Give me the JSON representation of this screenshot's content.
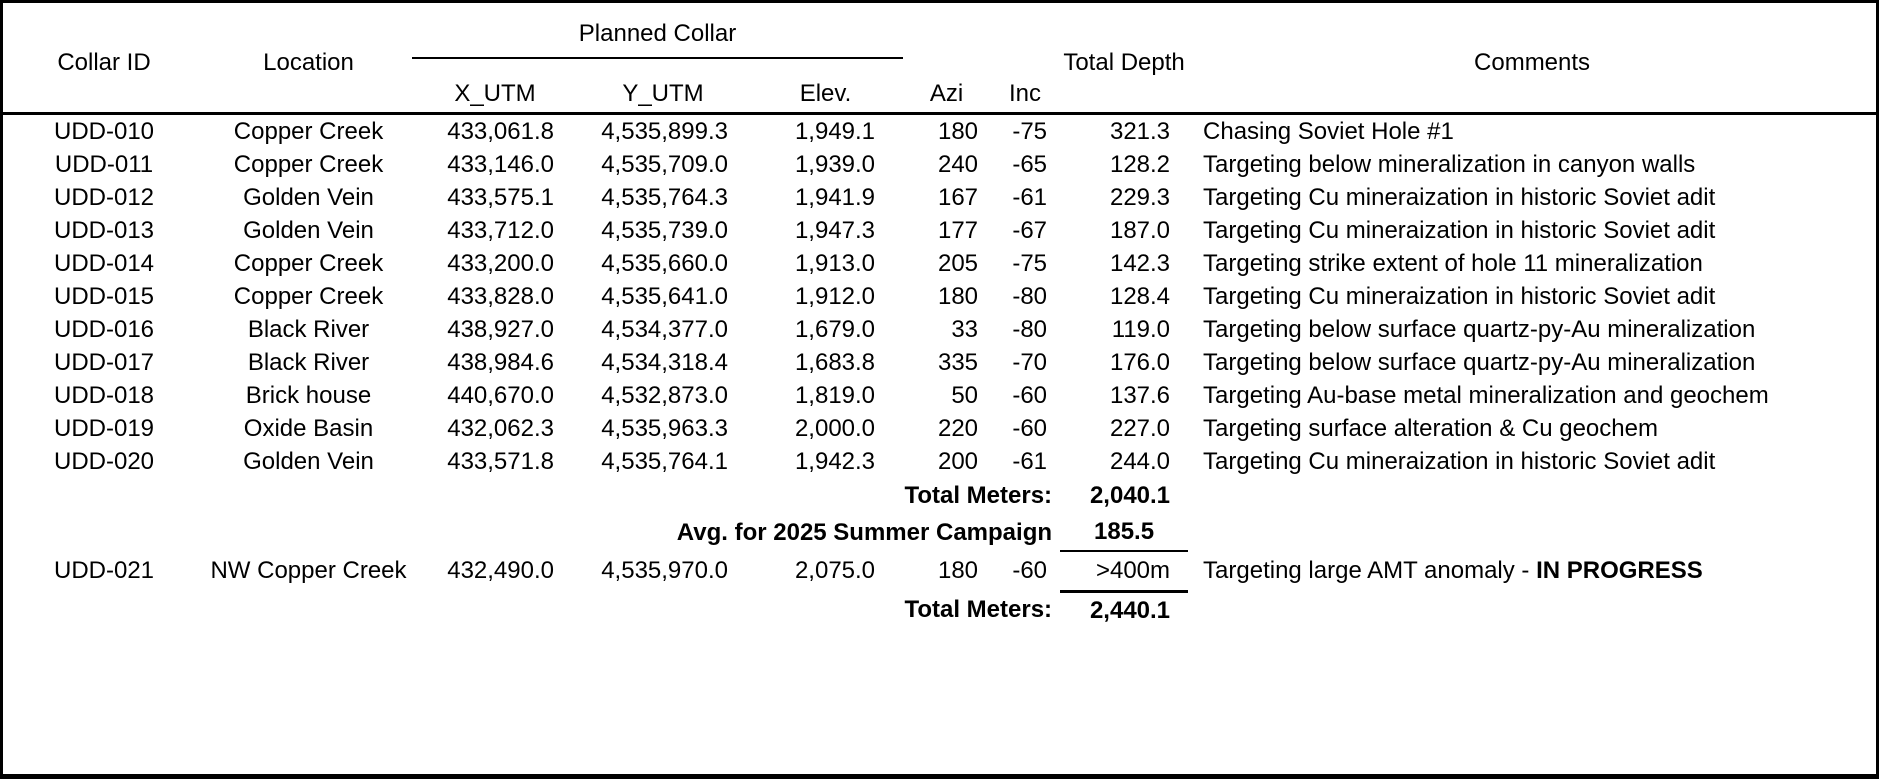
{
  "table": {
    "headers": {
      "collar_id": "Collar ID",
      "location": "Location",
      "planned_collar": "Planned Collar",
      "x_utm": "X_UTM",
      "y_utm": "Y_UTM",
      "elev": "Elev.",
      "azi": "Azi",
      "inc": "Inc",
      "total_depth": "Total Depth",
      "comments": "Comments"
    },
    "rows": [
      {
        "collar_id": "UDD-010",
        "location": "Copper Creek",
        "x_utm": "433,061.8",
        "y_utm": "4,535,899.3",
        "elev": "1,949.1",
        "azi": "180",
        "inc": "-75",
        "total_depth": "321.3",
        "comments": "Chasing Soviet Hole #1"
      },
      {
        "collar_id": "UDD-011",
        "location": "Copper Creek",
        "x_utm": "433,146.0",
        "y_utm": "4,535,709.0",
        "elev": "1,939.0",
        "azi": "240",
        "inc": "-65",
        "total_depth": "128.2",
        "comments": "Targeting below mineralization in canyon walls"
      },
      {
        "collar_id": "UDD-012",
        "location": "Golden Vein",
        "x_utm": "433,575.1",
        "y_utm": "4,535,764.3",
        "elev": "1,941.9",
        "azi": "167",
        "inc": "-61",
        "total_depth": "229.3",
        "comments": "Targeting Cu mineraization in historic Soviet adit"
      },
      {
        "collar_id": "UDD-013",
        "location": "Golden Vein",
        "x_utm": "433,712.0",
        "y_utm": "4,535,739.0",
        "elev": "1,947.3",
        "azi": "177",
        "inc": "-67",
        "total_depth": "187.0",
        "comments": "Targeting Cu mineraization in historic Soviet adit"
      },
      {
        "collar_id": "UDD-014",
        "location": "Copper Creek",
        "x_utm": "433,200.0",
        "y_utm": "4,535,660.0",
        "elev": "1,913.0",
        "azi": "205",
        "inc": "-75",
        "total_depth": "142.3",
        "comments": "Targeting strike extent of hole 11 mineralization"
      },
      {
        "collar_id": "UDD-015",
        "location": "Copper Creek",
        "x_utm": "433,828.0",
        "y_utm": "4,535,641.0",
        "elev": "1,912.0",
        "azi": "180",
        "inc": "-80",
        "total_depth": "128.4",
        "comments": "Targeting Cu mineraization in historic Soviet adit"
      },
      {
        "collar_id": "UDD-016",
        "location": "Black River",
        "x_utm": "438,927.0",
        "y_utm": "4,534,377.0",
        "elev": "1,679.0",
        "azi": "33",
        "inc": "-80",
        "total_depth": "119.0",
        "comments": "Targeting below surface quartz-py-Au mineralization"
      },
      {
        "collar_id": "UDD-017",
        "location": "Black River",
        "x_utm": "438,984.6",
        "y_utm": "4,534,318.4",
        "elev": "1,683.8",
        "azi": "335",
        "inc": "-70",
        "total_depth": "176.0",
        "comments": "Targeting below surface quartz-py-Au mineralization"
      },
      {
        "collar_id": "UDD-018",
        "location": "Brick house",
        "x_utm": "440,670.0",
        "y_utm": "4,532,873.0",
        "elev": "1,819.0",
        "azi": "50",
        "inc": "-60",
        "total_depth": "137.6",
        "comments": "Targeting Au-base metal mineralization and geochem"
      },
      {
        "collar_id": "UDD-019",
        "location": "Oxide Basin",
        "x_utm": "432,062.3",
        "y_utm": "4,535,963.3",
        "elev": "2,000.0",
        "azi": "220",
        "inc": "-60",
        "total_depth": "227.0",
        "comments": "Targeting surface alteration & Cu geochem"
      },
      {
        "collar_id": "UDD-020",
        "location": "Golden Vein",
        "x_utm": "433,571.8",
        "y_utm": "4,535,764.1",
        "elev": "1,942.3",
        "azi": "200",
        "inc": "-61",
        "total_depth": "244.0",
        "comments": "Targeting Cu mineraization in historic Soviet adit"
      }
    ],
    "summary": {
      "total_meters_label": "Total Meters:",
      "total_meters_value": "2,040.1",
      "avg_label": "Avg. for 2025 Summer Campaign",
      "avg_value": "185.5",
      "grand_total_label": "Total Meters:",
      "grand_total_value": "2,440.1"
    },
    "in_progress_row": {
      "collar_id": "UDD-021",
      "location": "NW Copper Creek",
      "x_utm": "432,490.0",
      "y_utm": "4,535,970.0",
      "elev": "2,075.0",
      "azi": "180",
      "inc": "-60",
      "total_depth": ">400m",
      "comments_prefix": "Targeting large AMT anomaly - ",
      "comments_status": "IN PROGRESS"
    }
  },
  "colors": {
    "text": "#000000",
    "background": "#ffffff",
    "border": "#000000"
  }
}
